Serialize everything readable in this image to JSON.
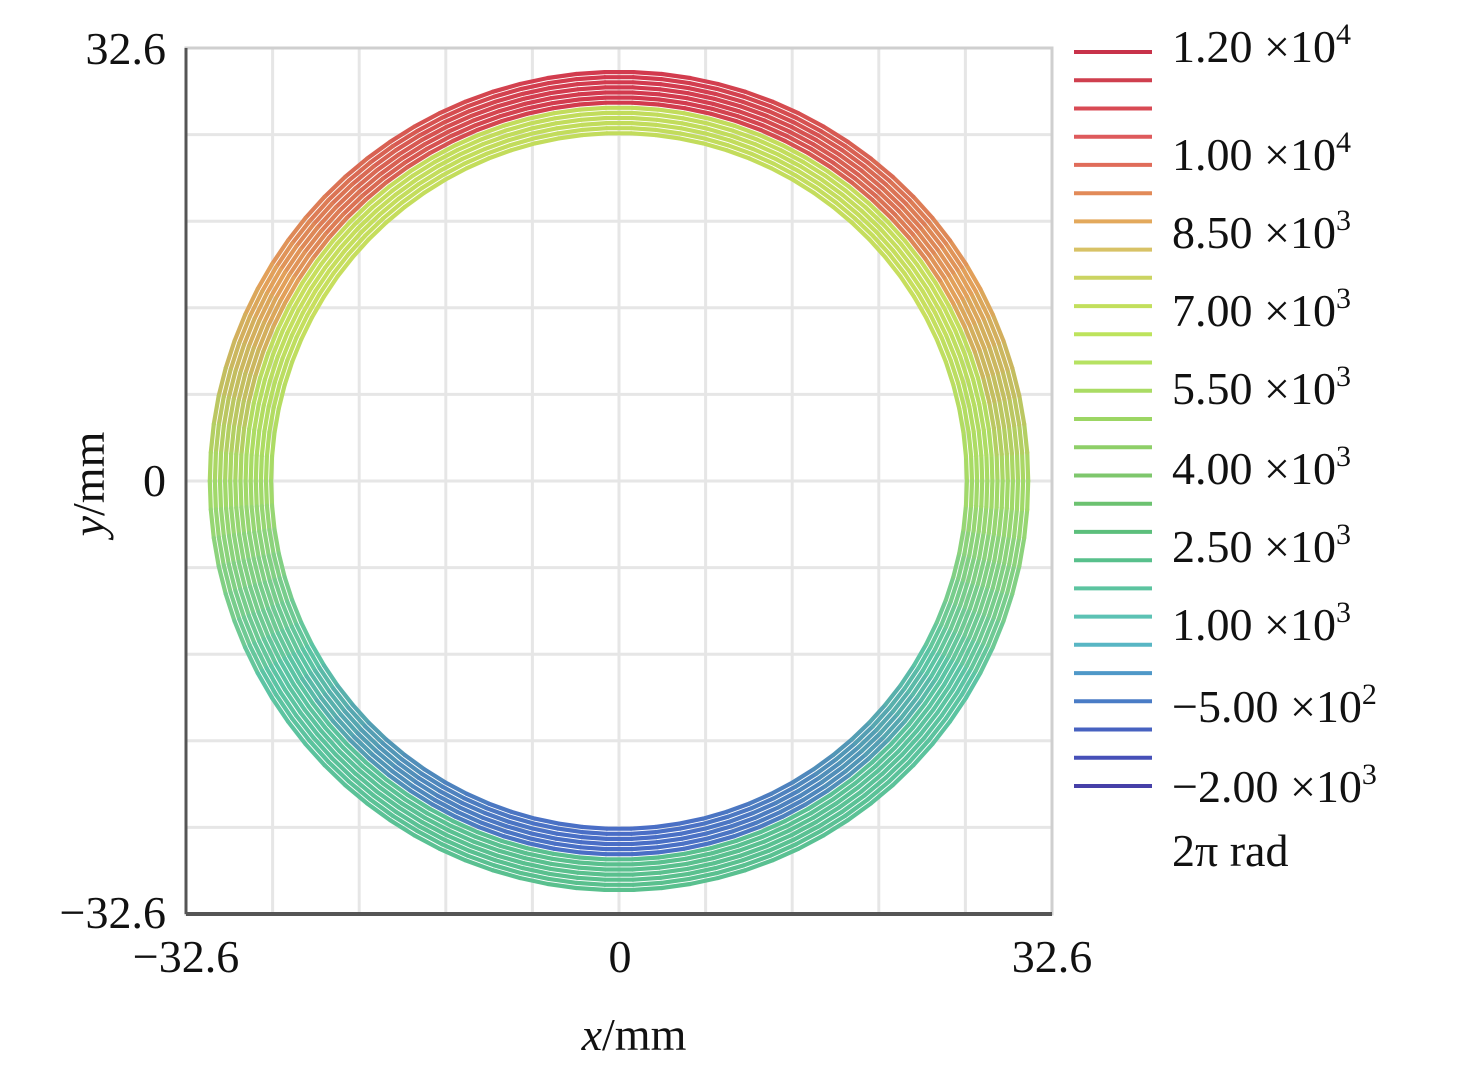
{
  "chart_data": {
    "type": "contour",
    "title": "",
    "xlabel_var": "x",
    "xlabel_unit": "/mm",
    "ylabel_var": "y",
    "ylabel_unit": "/mm",
    "xlim": [
      -32.6,
      32.6
    ],
    "ylim": [
      -32.6,
      32.6
    ],
    "x_ticks": [
      "−32.6",
      "0",
      "32.6"
    ],
    "y_ticks": [
      "32.6",
      "0",
      "−32.6"
    ],
    "grid": true,
    "annulus": {
      "inner_radius": 26.0,
      "outer_radius": 31.0,
      "center": [
        0,
        0
      ]
    },
    "colorbar": {
      "unit": "2π rad",
      "labels": [
        {
          "mantissa": "1.20",
          "exp": "4"
        },
        {
          "mantissa": "1.00",
          "exp": "4"
        },
        {
          "mantissa": "8.50",
          "exp": "3"
        },
        {
          "mantissa": "7.00",
          "exp": "3"
        },
        {
          "mantissa": "5.50",
          "exp": "3"
        },
        {
          "mantissa": "4.00",
          "exp": "3"
        },
        {
          "mantissa": "2.50",
          "exp": "3"
        },
        {
          "mantissa": "1.00",
          "exp": "3"
        },
        {
          "mantissa": "−5.00",
          "exp": "2"
        },
        {
          "mantissa": "−2.00",
          "exp": "3"
        }
      ],
      "colors": [
        "#c8324a",
        "#cf3f4e",
        "#d84a54",
        "#de5a5c",
        "#e06c5a",
        "#e28a58",
        "#e3a95c",
        "#d8c266",
        "#cbd462",
        "#c2df5c",
        "#bde35c",
        "#b6e262",
        "#aadc64",
        "#9cd664",
        "#8ecf68",
        "#7ec76c",
        "#6cc270",
        "#5cbf7c",
        "#58c08c",
        "#5cc4a0",
        "#5cc2b4",
        "#58b6c4",
        "#4f98c8",
        "#4a7cc6",
        "#4762c0",
        "#4650b8",
        "#4640a8"
      ]
    }
  }
}
